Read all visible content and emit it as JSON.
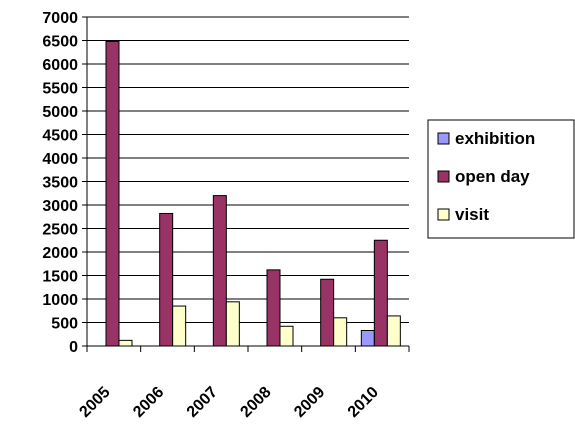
{
  "chart_data": {
    "type": "bar",
    "categories": [
      "2005",
      "2006",
      "2007",
      "2008",
      "2009",
      "2010"
    ],
    "series": [
      {
        "name": "exhibition",
        "color": "#9999FF",
        "values": [
          0,
          0,
          0,
          0,
          0,
          330
        ]
      },
      {
        "name": "open day",
        "color": "#993366",
        "values": [
          6480,
          2820,
          3200,
          1620,
          1420,
          2250
        ]
      },
      {
        "name": "visit",
        "color": "#FFFFCC",
        "values": [
          120,
          850,
          940,
          420,
          600,
          640
        ]
      }
    ],
    "ylim": [
      0,
      7000
    ],
    "ytick_step": 500,
    "ytick_labels": [
      "0",
      "500",
      "1000",
      "1500",
      "2000",
      "2500",
      "3000",
      "3500",
      "4000",
      "4500",
      "5000",
      "5500",
      "6000",
      "6500",
      "7000"
    ],
    "grid": true,
    "legend_position": "right",
    "title": "",
    "xlabel": "",
    "ylabel": ""
  }
}
